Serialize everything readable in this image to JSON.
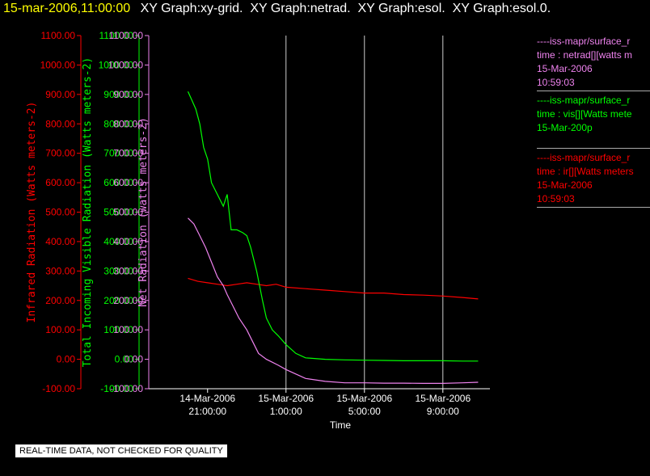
{
  "title": {
    "time": "15-mar-2006,11:00:00",
    "graphs": [
      "XY Graph:xy-grid.",
      "XY Graph:netrad.",
      "XY Graph:esol.",
      "XY Graph:esol.0."
    ]
  },
  "colors": {
    "background": "#000000",
    "infrared": "#ff0000",
    "visible": "#00ff00",
    "net": "#ee82ee",
    "grid": "#cccccc",
    "axis": "#ffffff"
  },
  "legend": [
    {
      "name": "legend-netrad",
      "color": "#ee82ee",
      "lines": [
        "----iss-mapr/surface_r",
        "time : netrad[][watts m",
        "15-Mar-2006",
        "10:59:03"
      ]
    },
    {
      "name": "legend-vis",
      "color": "#00ff00",
      "lines": [
        "----iss-mapr/surface_r",
        "time : vis[][Watts mete",
        "15-Mar-200p"
      ]
    },
    {
      "name": "legend-ir",
      "color": "#ff0000",
      "lines": [
        "----iss-mapr/surface_r",
        "time : ir[][Watts meters",
        "15-Mar-2006",
        "10:59:03"
      ]
    }
  ],
  "quality_note": "REAL-TIME DATA, NOT CHECKED FOR QUALITY",
  "chart_data": {
    "type": "line",
    "xlabel": "Time",
    "x_ticks": [
      {
        "date": "14-Mar-2006",
        "time": "21:00:00"
      },
      {
        "date": "15-Mar-2006",
        "time": "1:00:00"
      },
      {
        "date": "15-Mar-2006",
        "time": "5:00:00"
      },
      {
        "date": "15-Mar-2006",
        "time": "9:00:00"
      }
    ],
    "x_tick_hours": [
      21,
      25,
      29,
      33
    ],
    "xlim_hours": [
      18.0,
      35.4
    ],
    "data_start_hour": 20.0,
    "vertical_gridlines_hours": [
      25,
      29,
      33
    ],
    "axes": [
      {
        "name": "infrared-axis",
        "label": "Infrared Radiation (Watts meters-2)",
        "color": "#ff0000",
        "ylim": [
          -100,
          1100
        ],
        "ticks": [
          "-100.00",
          "0.00",
          "100.00",
          "200.00",
          "300.00",
          "400.00",
          "500.00",
          "600.00",
          "700.00",
          "800.00",
          "900.00",
          "1000.00",
          "1100.00"
        ]
      },
      {
        "name": "visible-axis",
        "label": "Total Incoming Visible Radiation (Watts meters-2)",
        "color": "#00ff00",
        "ylim": [
          -100,
          1100
        ],
        "ticks": [
          "-100.00",
          "0.00",
          "100.00",
          "200.00",
          "300.00",
          "400.00",
          "500.00",
          "600.00",
          "700.00",
          "800.00",
          "900.00",
          "1000.00",
          "1100.00"
        ]
      },
      {
        "name": "net-axis",
        "label": "Net Radiation (watts meters-2)",
        "color": "#ee82ee",
        "ylim": [
          -100,
          1100
        ],
        "ticks": [
          "-100.00",
          "0.00",
          "100.00",
          "200.00",
          "300.00",
          "400.00",
          "500.00",
          "600.00",
          "700.00",
          "800.00",
          "900.00",
          "1000.00",
          "1100.00"
        ]
      }
    ],
    "series": [
      {
        "name": "ir",
        "color": "#ff0000",
        "x": [
          20.0,
          20.5,
          21.0,
          21.5,
          22.0,
          22.5,
          23.0,
          23.5,
          24.0,
          24.5,
          25.0,
          26.0,
          27.0,
          28.0,
          29.0,
          30.0,
          31.0,
          32.0,
          33.0,
          34.0,
          34.8
        ],
        "y": [
          275,
          265,
          260,
          255,
          250,
          255,
          260,
          255,
          250,
          255,
          245,
          240,
          235,
          230,
          225,
          225,
          220,
          218,
          215,
          210,
          205
        ]
      },
      {
        "name": "vis",
        "color": "#00ff00",
        "x": [
          20.0,
          20.2,
          20.4,
          20.6,
          20.8,
          21.0,
          21.2,
          21.5,
          21.8,
          22.0,
          22.2,
          22.5,
          22.8,
          23.0,
          23.2,
          23.5,
          23.8,
          24.0,
          24.3,
          24.6,
          25.0,
          25.5,
          26.0,
          27.0,
          28.0,
          29.0,
          30.0,
          31.0,
          32.0,
          33.0,
          34.0,
          34.8
        ],
        "y": [
          910,
          880,
          850,
          800,
          720,
          680,
          600,
          560,
          520,
          560,
          440,
          440,
          430,
          420,
          380,
          300,
          200,
          140,
          100,
          80,
          50,
          20,
          5,
          0,
          -2,
          -3,
          -4,
          -5,
          -5,
          -5,
          -6,
          -6
        ]
      },
      {
        "name": "netrad",
        "color": "#ee82ee",
        "x": [
          20.0,
          20.3,
          20.6,
          20.9,
          21.2,
          21.5,
          21.8,
          22.0,
          22.3,
          22.6,
          23.0,
          23.3,
          23.6,
          24.0,
          24.3,
          24.6,
          25.0,
          25.5,
          26.0,
          27.0,
          28.0,
          29.0,
          30.0,
          31.0,
          32.0,
          33.0,
          34.0,
          34.8
        ],
        "y": [
          480,
          460,
          420,
          380,
          330,
          280,
          250,
          220,
          180,
          140,
          100,
          60,
          20,
          0,
          -10,
          -20,
          -35,
          -50,
          -65,
          -75,
          -80,
          -80,
          -81,
          -81,
          -82,
          -82,
          -80,
          -78
        ]
      }
    ]
  }
}
